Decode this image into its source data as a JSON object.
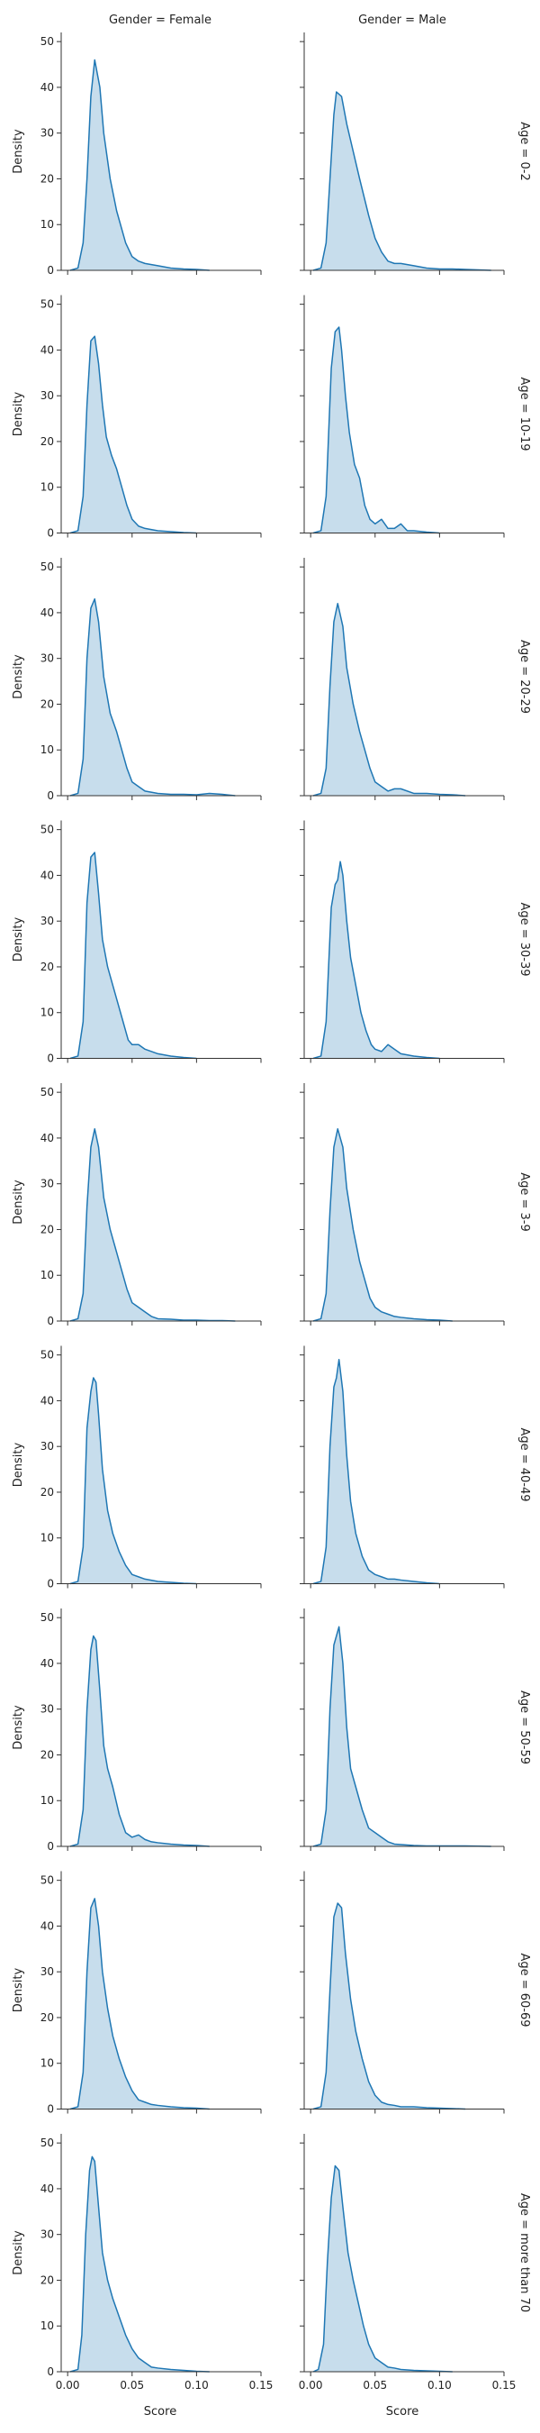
{
  "figure": {
    "col_titles": [
      "Gender = Female",
      "Gender = Male"
    ],
    "row_titles": [
      "Age = 0-2",
      "Age = 10-19",
      "Age = 20-29",
      "Age = 30-39",
      "Age = 3-9",
      "Age = 40-49",
      "Age = 50-59",
      "Age = 60-69",
      "Age = more than 70"
    ],
    "xlabel": "Score",
    "ylabel": "Density",
    "colors": {
      "line": "#1f77b4",
      "fill": "#1f77b4",
      "fill_opacity": 0.25,
      "axis": "#333333"
    }
  },
  "chart_data": {
    "type": "area",
    "description_kind": "kde",
    "xlim": [
      -0.005,
      0.15
    ],
    "ylim": [
      0,
      52
    ],
    "xticks": [
      0.0,
      0.05,
      0.1,
      0.15
    ],
    "xtick_labels": [
      "0.00",
      "0.05",
      "0.10",
      "0.15"
    ],
    "yticks": [
      0,
      10,
      20,
      30,
      40,
      50
    ],
    "ytick_labels": [
      "0",
      "10",
      "20",
      "30",
      "40",
      "50"
    ],
    "grid": false,
    "panels": [
      {
        "row": 0,
        "col": 0,
        "x": [
          0.002,
          0.008,
          0.012,
          0.015,
          0.018,
          0.021,
          0.025,
          0.028,
          0.033,
          0.038,
          0.045,
          0.05,
          0.055,
          0.06,
          0.07,
          0.08,
          0.09,
          0.1,
          0.11
        ],
        "y": [
          0,
          0.5,
          6,
          20,
          38,
          46,
          40,
          30,
          20,
          13,
          6,
          3,
          2,
          1.5,
          1,
          0.5,
          0.3,
          0.2,
          0
        ]
      },
      {
        "row": 0,
        "col": 1,
        "x": [
          0.002,
          0.008,
          0.012,
          0.015,
          0.018,
          0.02,
          0.024,
          0.028,
          0.033,
          0.038,
          0.045,
          0.05,
          0.055,
          0.06,
          0.065,
          0.07,
          0.08,
          0.09,
          0.1,
          0.11,
          0.12,
          0.13,
          0.14
        ],
        "y": [
          0,
          0.5,
          6,
          20,
          34,
          39,
          38,
          32,
          26,
          20,
          12,
          7,
          4,
          2,
          1.5,
          1.5,
          1,
          0.5,
          0.3,
          0.3,
          0.2,
          0.1,
          0
        ]
      },
      {
        "row": 1,
        "col": 0,
        "x": [
          0.002,
          0.008,
          0.012,
          0.015,
          0.018,
          0.021,
          0.024,
          0.027,
          0.03,
          0.034,
          0.038,
          0.042,
          0.046,
          0.05,
          0.055,
          0.06,
          0.07,
          0.08,
          0.09,
          0.1
        ],
        "y": [
          0,
          0.5,
          8,
          28,
          42,
          43,
          37,
          28,
          21,
          17,
          14,
          10,
          6,
          3,
          1.5,
          1,
          0.5,
          0.3,
          0.1,
          0
        ]
      },
      {
        "row": 1,
        "col": 1,
        "x": [
          0.002,
          0.008,
          0.012,
          0.016,
          0.019,
          0.022,
          0.024,
          0.027,
          0.03,
          0.034,
          0.038,
          0.042,
          0.046,
          0.05,
          0.055,
          0.06,
          0.065,
          0.07,
          0.075,
          0.08,
          0.09,
          0.1
        ],
        "y": [
          0,
          0.5,
          8,
          36,
          44,
          45,
          40,
          30,
          22,
          15,
          12,
          6,
          3,
          2,
          3,
          1,
          1,
          2,
          0.5,
          0.5,
          0.2,
          0
        ]
      },
      {
        "row": 2,
        "col": 0,
        "x": [
          0.002,
          0.008,
          0.012,
          0.015,
          0.018,
          0.021,
          0.024,
          0.028,
          0.033,
          0.038,
          0.042,
          0.046,
          0.05,
          0.055,
          0.06,
          0.07,
          0.08,
          0.09,
          0.1,
          0.11,
          0.12,
          0.13
        ],
        "y": [
          0,
          0.5,
          8,
          30,
          41,
          43,
          38,
          26,
          18,
          14,
          10,
          6,
          3,
          2,
          1,
          0.5,
          0.3,
          0.3,
          0.2,
          0.5,
          0.3,
          0
        ]
      },
      {
        "row": 2,
        "col": 1,
        "x": [
          0.002,
          0.008,
          0.012,
          0.015,
          0.018,
          0.021,
          0.025,
          0.028,
          0.033,
          0.038,
          0.042,
          0.046,
          0.05,
          0.055,
          0.06,
          0.065,
          0.07,
          0.08,
          0.09,
          0.1,
          0.11,
          0.12
        ],
        "y": [
          0,
          0.5,
          6,
          24,
          38,
          42,
          37,
          28,
          20,
          14,
          10,
          6,
          3,
          2,
          1,
          1.5,
          1.5,
          0.5,
          0.5,
          0.3,
          0.2,
          0
        ]
      },
      {
        "row": 3,
        "col": 0,
        "x": [
          0.002,
          0.008,
          0.012,
          0.015,
          0.018,
          0.021,
          0.024,
          0.027,
          0.031,
          0.035,
          0.039,
          0.043,
          0.047,
          0.05,
          0.055,
          0.06,
          0.07,
          0.08,
          0.09,
          0.1
        ],
        "y": [
          0,
          0.5,
          8,
          34,
          44,
          45,
          36,
          26,
          20,
          16,
          12,
          8,
          4,
          3,
          3,
          2,
          1,
          0.5,
          0.2,
          0
        ]
      },
      {
        "row": 3,
        "col": 1,
        "x": [
          0.002,
          0.008,
          0.012,
          0.016,
          0.019,
          0.021,
          0.023,
          0.025,
          0.028,
          0.031,
          0.035,
          0.039,
          0.043,
          0.047,
          0.05,
          0.055,
          0.06,
          0.065,
          0.07,
          0.08,
          0.09,
          0.1
        ],
        "y": [
          0,
          0.5,
          8,
          33,
          38,
          39,
          43,
          40,
          30,
          22,
          16,
          10,
          6,
          3,
          2,
          1.5,
          3,
          2,
          1,
          0.5,
          0.2,
          0
        ]
      },
      {
        "row": 4,
        "col": 0,
        "x": [
          0.002,
          0.008,
          0.012,
          0.015,
          0.018,
          0.021,
          0.024,
          0.028,
          0.033,
          0.038,
          0.042,
          0.046,
          0.05,
          0.055,
          0.06,
          0.065,
          0.07,
          0.08,
          0.09,
          0.1,
          0.11,
          0.12,
          0.13
        ],
        "y": [
          0,
          0.5,
          6,
          25,
          38,
          42,
          38,
          27,
          20,
          15,
          11,
          7,
          4,
          3,
          2,
          1,
          0.5,
          0.4,
          0.2,
          0.2,
          0.1,
          0.1,
          0
        ]
      },
      {
        "row": 4,
        "col": 1,
        "x": [
          0.002,
          0.008,
          0.012,
          0.015,
          0.018,
          0.021,
          0.025,
          0.028,
          0.033,
          0.038,
          0.042,
          0.046,
          0.05,
          0.055,
          0.06,
          0.065,
          0.07,
          0.08,
          0.09,
          0.1,
          0.11
        ],
        "y": [
          0,
          0.5,
          6,
          24,
          38,
          42,
          38,
          29,
          20,
          13,
          9,
          5,
          3,
          2,
          1.5,
          1,
          0.8,
          0.5,
          0.3,
          0.2,
          0
        ]
      },
      {
        "row": 5,
        "col": 0,
        "x": [
          0.002,
          0.008,
          0.012,
          0.015,
          0.018,
          0.02,
          0.022,
          0.024,
          0.027,
          0.031,
          0.035,
          0.04,
          0.045,
          0.05,
          0.055,
          0.06,
          0.07,
          0.08,
          0.09,
          0.1
        ],
        "y": [
          0,
          0.5,
          8,
          34,
          42,
          45,
          44,
          37,
          25,
          16,
          11,
          7,
          4,
          2,
          1.5,
          1,
          0.5,
          0.3,
          0.1,
          0
        ]
      },
      {
        "row": 5,
        "col": 1,
        "x": [
          0.002,
          0.008,
          0.012,
          0.015,
          0.018,
          0.02,
          0.022,
          0.025,
          0.028,
          0.031,
          0.035,
          0.04,
          0.045,
          0.05,
          0.055,
          0.06,
          0.065,
          0.07,
          0.08,
          0.09,
          0.1
        ],
        "y": [
          0,
          0.5,
          8,
          30,
          43,
          45,
          49,
          42,
          28,
          18,
          11,
          6,
          3,
          2,
          1.5,
          1,
          1,
          0.8,
          0.5,
          0.2,
          0
        ]
      },
      {
        "row": 6,
        "col": 0,
        "x": [
          0.002,
          0.008,
          0.012,
          0.015,
          0.018,
          0.02,
          0.022,
          0.025,
          0.028,
          0.031,
          0.035,
          0.04,
          0.045,
          0.05,
          0.055,
          0.06,
          0.065,
          0.07,
          0.08,
          0.09,
          0.1,
          0.11
        ],
        "y": [
          0,
          0.5,
          8,
          30,
          43,
          46,
          45,
          34,
          22,
          17,
          13,
          7,
          3,
          2,
          2.5,
          1.5,
          1,
          0.8,
          0.5,
          0.3,
          0.2,
          0
        ]
      },
      {
        "row": 6,
        "col": 1,
        "x": [
          0.002,
          0.008,
          0.012,
          0.015,
          0.018,
          0.02,
          0.022,
          0.025,
          0.028,
          0.031,
          0.035,
          0.04,
          0.045,
          0.05,
          0.055,
          0.06,
          0.065,
          0.07,
          0.08,
          0.09,
          0.1,
          0.12,
          0.14
        ],
        "y": [
          0,
          0.5,
          8,
          30,
          44,
          46,
          48,
          40,
          26,
          17,
          13,
          8,
          4,
          3,
          2,
          1,
          0.5,
          0.4,
          0.2,
          0.1,
          0.1,
          0.1,
          0
        ]
      },
      {
        "row": 7,
        "col": 0,
        "x": [
          0.002,
          0.008,
          0.012,
          0.015,
          0.018,
          0.021,
          0.024,
          0.027,
          0.031,
          0.035,
          0.04,
          0.045,
          0.05,
          0.055,
          0.06,
          0.065,
          0.07,
          0.08,
          0.09,
          0.1,
          0.11
        ],
        "y": [
          0,
          0.5,
          8,
          30,
          44,
          46,
          40,
          30,
          22,
          16,
          11,
          7,
          4,
          2,
          1.5,
          1,
          0.8,
          0.5,
          0.3,
          0.2,
          0
        ]
      },
      {
        "row": 7,
        "col": 1,
        "x": [
          0.002,
          0.008,
          0.012,
          0.015,
          0.018,
          0.021,
          0.024,
          0.027,
          0.031,
          0.035,
          0.04,
          0.045,
          0.05,
          0.055,
          0.06,
          0.065,
          0.07,
          0.08,
          0.09,
          0.1,
          0.11,
          0.12
        ],
        "y": [
          0,
          0.5,
          8,
          26,
          42,
          45,
          44,
          34,
          24,
          17,
          11,
          6,
          3,
          1.5,
          1,
          0.8,
          0.5,
          0.5,
          0.3,
          0.2,
          0.1,
          0
        ]
      },
      {
        "row": 8,
        "col": 0,
        "x": [
          0.002,
          0.008,
          0.011,
          0.014,
          0.017,
          0.019,
          0.021,
          0.024,
          0.027,
          0.031,
          0.035,
          0.04,
          0.045,
          0.05,
          0.055,
          0.06,
          0.065,
          0.07,
          0.08,
          0.09,
          0.1,
          0.11
        ],
        "y": [
          0,
          0.5,
          8,
          30,
          44,
          47,
          46,
          36,
          26,
          20,
          16,
          12,
          8,
          5,
          3,
          2,
          1,
          0.8,
          0.5,
          0.3,
          0.1,
          0
        ]
      },
      {
        "row": 8,
        "col": 1,
        "x": [
          0.002,
          0.006,
          0.01,
          0.013,
          0.016,
          0.019,
          0.022,
          0.025,
          0.029,
          0.033,
          0.037,
          0.041,
          0.045,
          0.05,
          0.055,
          0.06,
          0.065,
          0.07,
          0.08,
          0.09,
          0.1,
          0.11
        ],
        "y": [
          0,
          0.5,
          6,
          24,
          38,
          45,
          44,
          36,
          26,
          20,
          15,
          10,
          6,
          3,
          2,
          1,
          0.8,
          0.5,
          0.3,
          0.2,
          0.1,
          0
        ]
      }
    ]
  }
}
